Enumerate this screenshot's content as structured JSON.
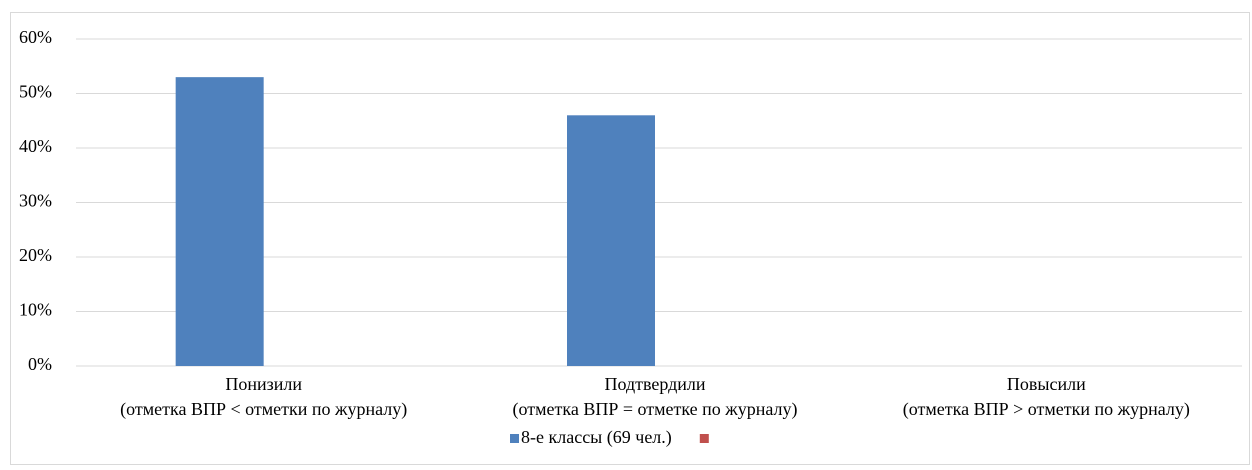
{
  "chart_data": {
    "type": "bar",
    "categories": [
      [
        "Понизили",
        "(отметка ВПР < отметки по журналу)"
      ],
      [
        "Подтвердили",
        "(отметка ВПР = отметке по журналу)"
      ],
      [
        "Повысили",
        "(отметка ВПР > отметки по журналу)"
      ]
    ],
    "series": [
      {
        "name": "8-е классы (69 чел.)",
        "color": "#4f81bd",
        "values": [
          53,
          46,
          0
        ]
      },
      {
        "color": "#c0504d",
        "values": [
          null,
          null,
          null
        ]
      }
    ],
    "ylim": [
      0,
      60
    ],
    "yticks": [
      {
        "value": 0,
        "label": "0%"
      },
      {
        "value": 10,
        "label": "10%"
      },
      {
        "value": 20,
        "label": "20%"
      },
      {
        "value": 30,
        "label": "30%"
      },
      {
        "value": 40,
        "label": "40%"
      },
      {
        "value": 50,
        "label": "50%"
      },
      {
        "value": 60,
        "label": "60%"
      }
    ],
    "grid": true,
    "legend": "bottom"
  }
}
